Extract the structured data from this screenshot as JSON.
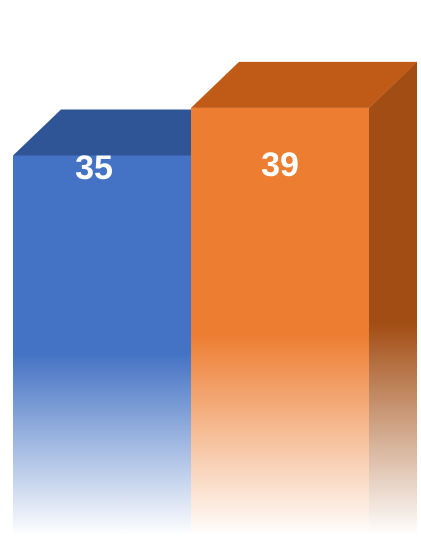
{
  "chart_data": {
    "type": "bar",
    "style": "3d-columns-with-fade",
    "grid": false,
    "legend": "none",
    "categories": [
      "",
      ""
    ],
    "values": [
      35,
      39
    ],
    "data_labels": [
      "35",
      "39"
    ],
    "colors": {
      "bar_1_front": "#4472c4",
      "bar_1_top": "#2f5597",
      "bar_2_front": "#ed7d31",
      "bar_2_top": "#c05a17",
      "bar_2_side": "#a24d13"
    }
  }
}
